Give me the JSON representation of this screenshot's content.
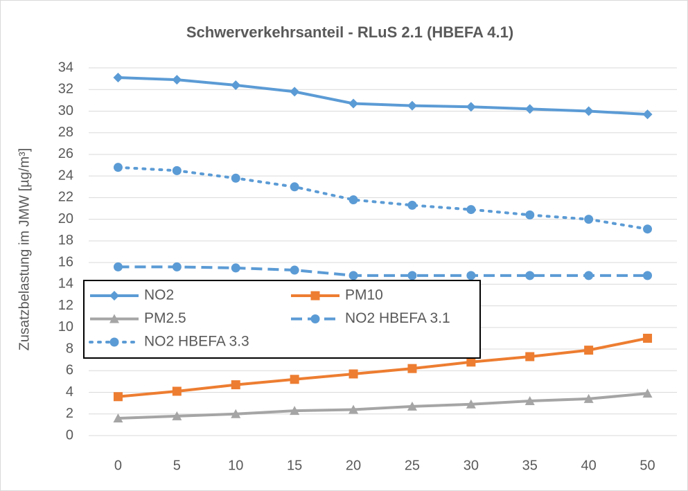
{
  "chart_data": {
    "type": "line",
    "title": "Schwerverkehrsanteil - RLuS 2.1 (HBEFA 4.1)",
    "y_label": "Zusatzbelastung im JMW [µg/m³]",
    "categories": [
      "0",
      "5",
      "10",
      "15",
      "20",
      "25",
      "30",
      "35",
      "40",
      "50"
    ],
    "series": [
      {
        "name": "NO2",
        "color": "#5b9bd5",
        "style": "solid",
        "marker": "diamond",
        "values": [
          33.1,
          32.9,
          32.4,
          31.8,
          30.7,
          30.5,
          30.4,
          30.2,
          30.0,
          29.7
        ]
      },
      {
        "name": "PM10",
        "color": "#ed7d31",
        "style": "solid",
        "marker": "square",
        "values": [
          3.6,
          4.1,
          4.7,
          5.2,
          5.7,
          6.2,
          6.8,
          7.3,
          7.9,
          9.0
        ]
      },
      {
        "name": "PM2.5",
        "color": "#a5a5a5",
        "style": "solid",
        "marker": "triangle",
        "values": [
          1.6,
          1.8,
          2.0,
          2.3,
          2.4,
          2.7,
          2.9,
          3.2,
          3.4,
          3.9
        ]
      },
      {
        "name": "NO2 HBEFA 3.1",
        "color": "#5b9bd5",
        "style": "dashed",
        "marker": "circle",
        "values": [
          15.6,
          15.6,
          15.5,
          15.3,
          14.8,
          14.8,
          14.8,
          14.8,
          14.8,
          14.8
        ]
      },
      {
        "name": "NO2 HBEFA 3.3",
        "color": "#5b9bd5",
        "style": "dotted",
        "marker": "circle",
        "values": [
          24.8,
          24.5,
          23.8,
          23.0,
          21.8,
          21.3,
          20.9,
          20.4,
          20.0,
          19.1
        ]
      }
    ],
    "ylim": [
      0,
      34
    ],
    "yticks": [
      0,
      2,
      4,
      6,
      8,
      10,
      12,
      14,
      16,
      18,
      20,
      22,
      24,
      26,
      28,
      30,
      32,
      34
    ],
    "grid": true
  }
}
